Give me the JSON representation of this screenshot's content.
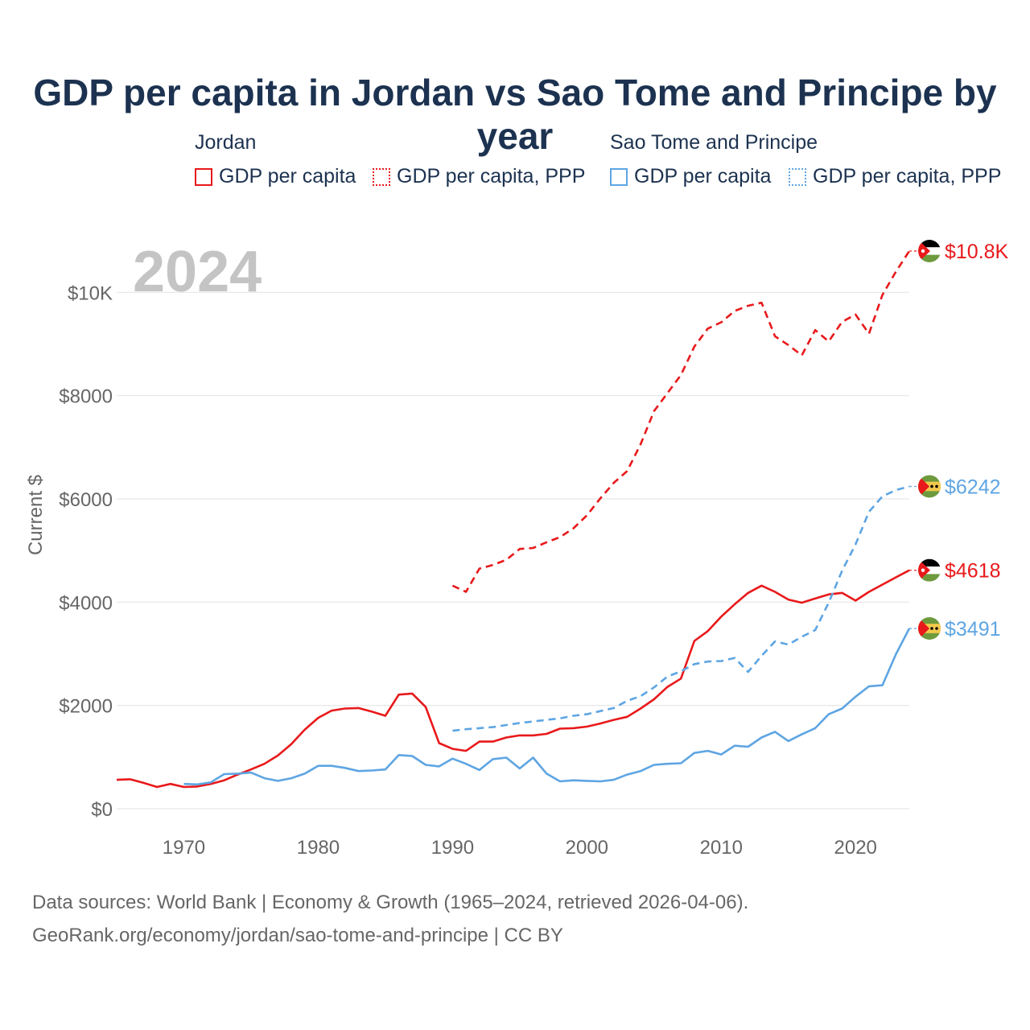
{
  "chart_data": {
    "type": "line",
    "title": "GDP per capita in Jordan vs Sao Tome and Principe by year",
    "ylabel": "Current $",
    "xlabel": "",
    "year_watermark": "2024",
    "xlim": [
      1965,
      2024
    ],
    "ylim": [
      0,
      10800
    ],
    "x_ticks": [
      1970,
      1980,
      1990,
      2000,
      2010,
      2020
    ],
    "y_ticks": [
      {
        "value": 0,
        "label": "$0"
      },
      {
        "value": 2000,
        "label": "$2000"
      },
      {
        "value": 4000,
        "label": "$4000"
      },
      {
        "value": 6000,
        "label": "$6000"
      },
      {
        "value": 8000,
        "label": "$8000"
      },
      {
        "value": 10000,
        "label": "$10K"
      }
    ],
    "legend": {
      "groups": [
        {
          "title": "Jordan",
          "items": [
            "GDP per capita",
            "GDP per capita, PPP"
          ]
        },
        {
          "title": "Sao Tome and Principe",
          "items": [
            "GDP per capita",
            "GDP per capita, PPP"
          ]
        }
      ]
    },
    "series": [
      {
        "name": "Jordan GDP per capita",
        "country": "Jordan",
        "color": "#e8191b",
        "dash": "solid",
        "end_label": "$4618",
        "x": [
          1965,
          1966,
          1967,
          1968,
          1969,
          1970,
          1971,
          1972,
          1973,
          1974,
          1975,
          1976,
          1977,
          1978,
          1979,
          1980,
          1981,
          1982,
          1983,
          1984,
          1985,
          1986,
          1987,
          1988,
          1989,
          1990,
          1991,
          1992,
          1993,
          1994,
          1995,
          1996,
          1997,
          1998,
          1999,
          2000,
          2001,
          2002,
          2003,
          2004,
          2005,
          2006,
          2007,
          2008,
          2009,
          2010,
          2011,
          2012,
          2013,
          2014,
          2015,
          2016,
          2017,
          2018,
          2019,
          2020,
          2021,
          2022,
          2023,
          2024
        ],
        "values": [
          560,
          570,
          500,
          420,
          480,
          420,
          430,
          480,
          550,
          660,
          760,
          870,
          1030,
          1250,
          1530,
          1760,
          1900,
          1940,
          1950,
          1880,
          1800,
          2210,
          2230,
          1970,
          1270,
          1160,
          1120,
          1300,
          1300,
          1380,
          1420,
          1420,
          1450,
          1550,
          1560,
          1590,
          1650,
          1720,
          1780,
          1940,
          2120,
          2360,
          2520,
          3250,
          3440,
          3720,
          3960,
          4180,
          4320,
          4200,
          4050,
          3990,
          4070,
          4150,
          4180,
          4030,
          4200,
          4340,
          4480,
          4618
        ]
      },
      {
        "name": "Jordan GDP per capita, PPP",
        "country": "Jordan",
        "color": "#e8191b",
        "dash": "dashed",
        "end_label": "$10.8K",
        "x": [
          1990,
          1991,
          1992,
          1993,
          1994,
          1995,
          1996,
          1997,
          1998,
          1999,
          2000,
          2001,
          2002,
          2003,
          2004,
          2005,
          2006,
          2007,
          2008,
          2009,
          2010,
          2011,
          2012,
          2013,
          2014,
          2015,
          2016,
          2017,
          2018,
          2019,
          2020,
          2021,
          2022,
          2023,
          2024
        ],
        "values": [
          4320,
          4200,
          4650,
          4720,
          4820,
          5030,
          5050,
          5160,
          5260,
          5430,
          5680,
          6010,
          6310,
          6540,
          7060,
          7700,
          8050,
          8400,
          8950,
          9300,
          9420,
          9640,
          9740,
          9800,
          9150,
          8980,
          8780,
          9270,
          9050,
          9430,
          9570,
          9200,
          9950,
          10400,
          10800
        ]
      },
      {
        "name": "Sao Tome and Principe GDP per capita",
        "country": "Sao Tome and Principe",
        "color": "#5ea5e3",
        "dash": "solid",
        "end_label": "$3491",
        "x": [
          1970,
          1971,
          1972,
          1973,
          1974,
          1975,
          1976,
          1977,
          1978,
          1979,
          1980,
          1981,
          1982,
          1983,
          1984,
          1985,
          1986,
          1987,
          1988,
          1989,
          1990,
          1991,
          1992,
          1993,
          1994,
          1995,
          1996,
          1997,
          1998,
          1999,
          2000,
          2001,
          2002,
          2003,
          2004,
          2005,
          2006,
          2007,
          2008,
          2009,
          2010,
          2011,
          2012,
          2013,
          2014,
          2015,
          2016,
          2017,
          2018,
          2019,
          2020,
          2021,
          2022,
          2023,
          2024
        ],
        "values": [
          480,
          470,
          510,
          670,
          680,
          700,
          590,
          540,
          590,
          680,
          830,
          830,
          790,
          730,
          740,
          760,
          1040,
          1020,
          850,
          820,
          970,
          870,
          750,
          960,
          990,
          780,
          990,
          680,
          530,
          550,
          540,
          530,
          560,
          660,
          730,
          850,
          870,
          880,
          1080,
          1120,
          1050,
          1220,
          1200,
          1380,
          1490,
          1310,
          1440,
          1560,
          1830,
          1940,
          2170,
          2370,
          2390,
          2990,
          3491
        ]
      },
      {
        "name": "Sao Tome and Principe GDP per capita, PPP",
        "country": "Sao Tome and Principe",
        "color": "#5ea5e3",
        "dash": "dashed",
        "end_label": "$6242",
        "x": [
          1990,
          1991,
          1992,
          1993,
          1994,
          1995,
          1996,
          1997,
          1998,
          1999,
          2000,
          2001,
          2002,
          2003,
          2004,
          2005,
          2006,
          2007,
          2008,
          2009,
          2010,
          2011,
          2012,
          2013,
          2014,
          2015,
          2016,
          2017,
          2018,
          2019,
          2020,
          2021,
          2022,
          2023,
          2024
        ],
        "values": [
          1510,
          1540,
          1560,
          1580,
          1620,
          1660,
          1690,
          1720,
          1750,
          1800,
          1830,
          1890,
          1950,
          2090,
          2180,
          2350,
          2560,
          2660,
          2800,
          2850,
          2860,
          2920,
          2650,
          2960,
          3240,
          3180,
          3330,
          3460,
          3990,
          4610,
          5120,
          5750,
          6050,
          6170,
          6242
        ]
      }
    ],
    "source": "Data sources: World Bank | Economy & Growth (1965–2024, retrieved 2026-04-06).",
    "attribution": "GeoRank.org/economy/jordan/sao-tome-and-principe | CC BY"
  },
  "legend_labels": {
    "jordan_title": "Jordan",
    "jordan_gdp": "GDP per capita",
    "jordan_ppp": "GDP per capita, PPP",
    "stp_title": "Sao Tome and Principe",
    "stp_gdp": "GDP per capita",
    "stp_ppp": "GDP per capita, PPP"
  },
  "colors": {
    "jordan": "#e8191b",
    "stp": "#5ea5e3",
    "title": "#1c3250",
    "axis_text": "#666666",
    "grid": "#e6e6e6",
    "watermark": "#c4c4c4"
  }
}
